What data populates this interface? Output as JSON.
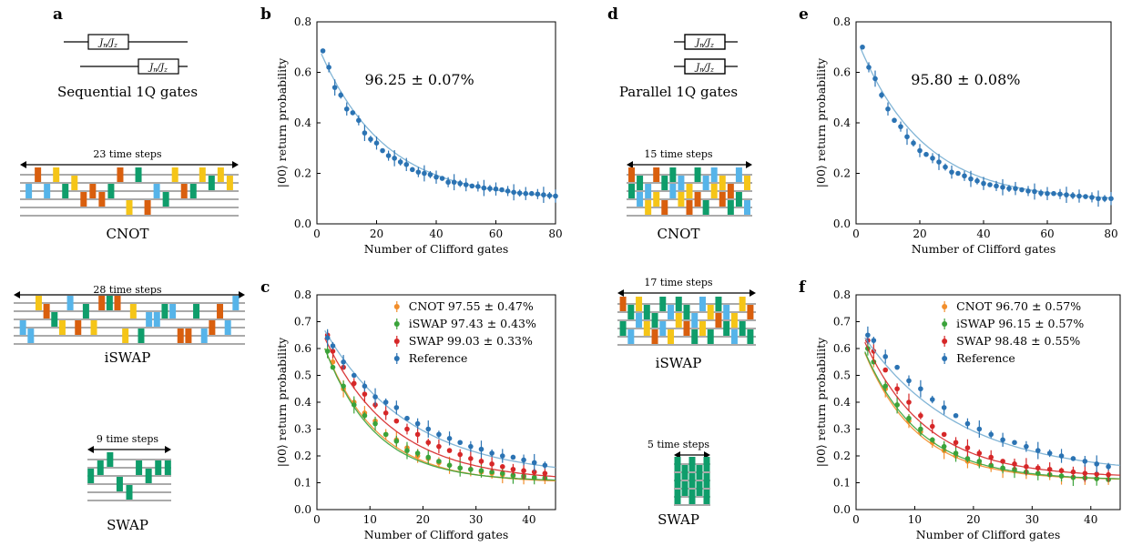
{
  "panels": {
    "a": {
      "label": "a",
      "seq_caption": "Sequential 1Q gates",
      "gate_label": "J_n / J_z",
      "cnot_steps": "23 time steps",
      "cnot_label": "CNOT",
      "iswap_steps": "28 time steps",
      "iswap_label": "iSWAP",
      "swap_steps": "9 time steps",
      "swap_label": "SWAP"
    },
    "d": {
      "label": "d",
      "par_caption": "Parallel 1Q gates",
      "gate_label": "J_n / J_z",
      "cnot_steps": "15 time steps",
      "cnot_label": "CNOT",
      "iswap_steps": "17 time steps",
      "iswap_label": "iSWAP",
      "swap_steps": "5 time steps",
      "swap_label": "SWAP"
    }
  },
  "colors": {
    "orange": "#d95f0e",
    "green": "#0f9d6b",
    "sky": "#56b4e9",
    "yellow": "#f5c518",
    "fit_blue": "#74add1",
    "ref": "#2b73b3",
    "cnot": "#f28e2b",
    "iswap": "#3aa33a",
    "swap": "#d62728"
  },
  "chart_data": [
    {
      "panel": "b",
      "type": "scatter",
      "xlabel": "Number of Clifford gates",
      "ylabel": "|00⟩ return probability",
      "xlim": [
        0,
        80
      ],
      "ylim": [
        0,
        0.8
      ],
      "xticks": [
        0,
        20,
        40,
        60,
        80
      ],
      "yticks": [
        0,
        0.2,
        0.4,
        0.6,
        0.8
      ],
      "annotation": "96.25 ± 0.07%",
      "fit": {
        "A": 0.62,
        "p": 0.955,
        "B": 0.095
      },
      "series": [
        {
          "name": "data",
          "x": [
            2,
            4,
            6,
            8,
            10,
            12,
            14,
            16,
            18,
            20,
            22,
            24,
            26,
            28,
            30,
            32,
            34,
            36,
            38,
            40,
            42,
            44,
            46,
            48,
            50,
            52,
            54,
            56,
            58,
            60,
            62,
            64,
            66,
            68,
            70,
            72,
            74,
            76,
            78,
            80
          ],
          "y": [
            0.685,
            0.62,
            0.54,
            0.51,
            0.455,
            0.44,
            0.41,
            0.36,
            0.335,
            0.32,
            0.29,
            0.27,
            0.26,
            0.245,
            0.235,
            0.215,
            0.205,
            0.2,
            0.195,
            0.185,
            0.18,
            0.165,
            0.165,
            0.16,
            0.155,
            0.15,
            0.148,
            0.142,
            0.14,
            0.138,
            0.135,
            0.13,
            0.125,
            0.122,
            0.12,
            0.12,
            0.118,
            0.115,
            0.112,
            0.11
          ]
        }
      ]
    },
    {
      "panel": "e",
      "type": "scatter",
      "xlabel": "Number of Clifford gates",
      "ylabel": "|00⟩ return probability",
      "xlim": [
        0,
        80
      ],
      "ylim": [
        0,
        0.8
      ],
      "xticks": [
        0,
        20,
        40,
        60,
        80
      ],
      "yticks": [
        0,
        0.2,
        0.4,
        0.6,
        0.8
      ],
      "annotation": "95.80 ± 0.08%",
      "fit": {
        "A": 0.65,
        "p": 0.952,
        "B": 0.09
      },
      "series": [
        {
          "name": "data",
          "x": [
            2,
            4,
            6,
            8,
            10,
            12,
            14,
            16,
            18,
            20,
            22,
            24,
            26,
            28,
            30,
            32,
            34,
            36,
            38,
            40,
            42,
            44,
            46,
            48,
            50,
            52,
            54,
            56,
            58,
            60,
            62,
            64,
            66,
            68,
            70,
            72,
            74,
            76,
            78,
            80
          ],
          "y": [
            0.7,
            0.62,
            0.575,
            0.51,
            0.455,
            0.41,
            0.385,
            0.345,
            0.32,
            0.29,
            0.275,
            0.26,
            0.245,
            0.225,
            0.205,
            0.2,
            0.19,
            0.178,
            0.17,
            0.16,
            0.155,
            0.15,
            0.145,
            0.14,
            0.14,
            0.135,
            0.13,
            0.128,
            0.122,
            0.12,
            0.12,
            0.118,
            0.115,
            0.112,
            0.11,
            0.108,
            0.105,
            0.1,
            0.1,
            0.1
          ]
        }
      ]
    },
    {
      "panel": "c",
      "type": "scatter",
      "xlabel": "Number of Clifford gates",
      "ylabel": "|00⟩ return probability",
      "xlim": [
        0,
        45
      ],
      "ylim": [
        0,
        0.8
      ],
      "xticks": [
        0,
        10,
        20,
        30,
        40
      ],
      "yticks": [
        0,
        0.1,
        0.2,
        0.3,
        0.4,
        0.5,
        0.6,
        0.7,
        0.8
      ],
      "legend": [
        "CNOT 97.55 ± 0.47%",
        "iSWAP 97.43 ± 0.43%",
        "SWAP 99.03 ± 0.33%",
        "Reference"
      ],
      "series": [
        {
          "name": "CNOT",
          "fit": {
            "A": 0.58,
            "p": 0.906,
            "B": 0.1
          },
          "x": [
            2,
            3,
            5,
            7,
            9,
            11,
            13,
            15,
            17,
            19,
            21,
            23,
            25,
            27,
            29,
            31,
            33,
            35,
            37,
            39,
            41,
            43
          ],
          "y": [
            0.59,
            0.55,
            0.45,
            0.4,
            0.36,
            0.33,
            0.28,
            0.26,
            0.23,
            0.2,
            0.19,
            0.175,
            0.165,
            0.155,
            0.15,
            0.14,
            0.135,
            0.13,
            0.125,
            0.12,
            0.118,
            0.115
          ]
        },
        {
          "name": "iSWAP",
          "fit": {
            "A": 0.58,
            "p": 0.9,
            "B": 0.105
          },
          "x": [
            2,
            3,
            5,
            7,
            9,
            11,
            13,
            15,
            17,
            19,
            21,
            23,
            25,
            27,
            29,
            31,
            33,
            35,
            37,
            39,
            41,
            43
          ],
          "y": [
            0.59,
            0.53,
            0.46,
            0.39,
            0.35,
            0.32,
            0.28,
            0.255,
            0.22,
            0.21,
            0.195,
            0.18,
            0.165,
            0.155,
            0.15,
            0.145,
            0.14,
            0.135,
            0.128,
            0.125,
            0.12,
            0.118
          ]
        },
        {
          "name": "SWAP",
          "fit": {
            "A": 0.6,
            "p": 0.925,
            "B": 0.105
          },
          "x": [
            2,
            3,
            5,
            7,
            9,
            11,
            13,
            15,
            17,
            19,
            21,
            23,
            25,
            27,
            29,
            31,
            33,
            35,
            37,
            39,
            41,
            43
          ],
          "y": [
            0.65,
            0.59,
            0.53,
            0.47,
            0.43,
            0.39,
            0.36,
            0.33,
            0.3,
            0.28,
            0.25,
            0.235,
            0.22,
            0.205,
            0.19,
            0.18,
            0.17,
            0.16,
            0.15,
            0.145,
            0.14,
            0.135
          ]
        },
        {
          "name": "Reference",
          "fit": {
            "A": 0.6,
            "p": 0.94,
            "B": 0.12
          },
          "x": [
            2,
            3,
            5,
            7,
            9,
            11,
            13,
            15,
            17,
            19,
            21,
            23,
            25,
            27,
            29,
            31,
            33,
            35,
            37,
            39,
            41,
            43
          ],
          "y": [
            0.64,
            0.61,
            0.55,
            0.5,
            0.46,
            0.42,
            0.4,
            0.38,
            0.34,
            0.32,
            0.3,
            0.28,
            0.265,
            0.25,
            0.235,
            0.225,
            0.21,
            0.2,
            0.195,
            0.185,
            0.175,
            0.165
          ]
        }
      ]
    },
    {
      "panel": "f",
      "type": "scatter",
      "xlabel": "Number of Clifford gates",
      "ylabel": "|00⟩ return probability",
      "xlim": [
        0,
        45
      ],
      "ylim": [
        0,
        0.8
      ],
      "xticks": [
        0,
        10,
        20,
        30,
        40
      ],
      "yticks": [
        0,
        0.1,
        0.2,
        0.3,
        0.4,
        0.5,
        0.6,
        0.7,
        0.8
      ],
      "legend": [
        "CNOT 96.70 ± 0.57%",
        "iSWAP 96.15 ± 0.57%",
        "SWAP 98.48 ± 0.55%",
        "Reference"
      ],
      "series": [
        {
          "name": "CNOT",
          "fit": {
            "A": 0.56,
            "p": 0.895,
            "B": 0.11
          },
          "x": [
            2,
            3,
            5,
            7,
            9,
            11,
            13,
            15,
            17,
            19,
            21,
            23,
            25,
            27,
            29,
            31,
            33,
            35,
            37,
            39,
            41,
            43
          ],
          "y": [
            0.6,
            0.55,
            0.45,
            0.39,
            0.33,
            0.29,
            0.25,
            0.22,
            0.2,
            0.18,
            0.17,
            0.16,
            0.15,
            0.145,
            0.14,
            0.135,
            0.13,
            0.125,
            0.12,
            0.118,
            0.115,
            0.112
          ]
        },
        {
          "name": "iSWAP",
          "fit": {
            "A": 0.56,
            "p": 0.9,
            "B": 0.11
          },
          "x": [
            2,
            3,
            5,
            7,
            9,
            11,
            13,
            15,
            17,
            19,
            21,
            23,
            25,
            27,
            29,
            31,
            33,
            35,
            37,
            39,
            41,
            43
          ],
          "y": [
            0.6,
            0.55,
            0.46,
            0.39,
            0.34,
            0.3,
            0.26,
            0.235,
            0.21,
            0.19,
            0.18,
            0.165,
            0.155,
            0.15,
            0.14,
            0.135,
            0.13,
            0.125,
            0.12,
            0.118,
            0.115,
            0.112
          ]
        },
        {
          "name": "SWAP",
          "fit": {
            "A": 0.58,
            "p": 0.91,
            "B": 0.12
          },
          "x": [
            2,
            3,
            5,
            7,
            9,
            11,
            13,
            15,
            17,
            19,
            21,
            23,
            25,
            27,
            29,
            31,
            33,
            35,
            37,
            39,
            41,
            43
          ],
          "y": [
            0.63,
            0.59,
            0.52,
            0.45,
            0.4,
            0.35,
            0.31,
            0.28,
            0.25,
            0.23,
            0.21,
            0.195,
            0.18,
            0.17,
            0.16,
            0.155,
            0.15,
            0.145,
            0.14,
            0.135,
            0.132,
            0.13
          ]
        },
        {
          "name": "Reference",
          "fit": {
            "A": 0.56,
            "p": 0.94,
            "B": 0.13
          },
          "x": [
            2,
            3,
            5,
            7,
            9,
            11,
            13,
            15,
            17,
            19,
            21,
            23,
            25,
            27,
            29,
            31,
            33,
            35,
            37,
            39,
            41,
            43
          ],
          "y": [
            0.65,
            0.63,
            0.57,
            0.53,
            0.48,
            0.45,
            0.41,
            0.38,
            0.35,
            0.32,
            0.3,
            0.28,
            0.26,
            0.25,
            0.235,
            0.22,
            0.21,
            0.2,
            0.19,
            0.18,
            0.17,
            0.16
          ]
        }
      ]
    }
  ]
}
